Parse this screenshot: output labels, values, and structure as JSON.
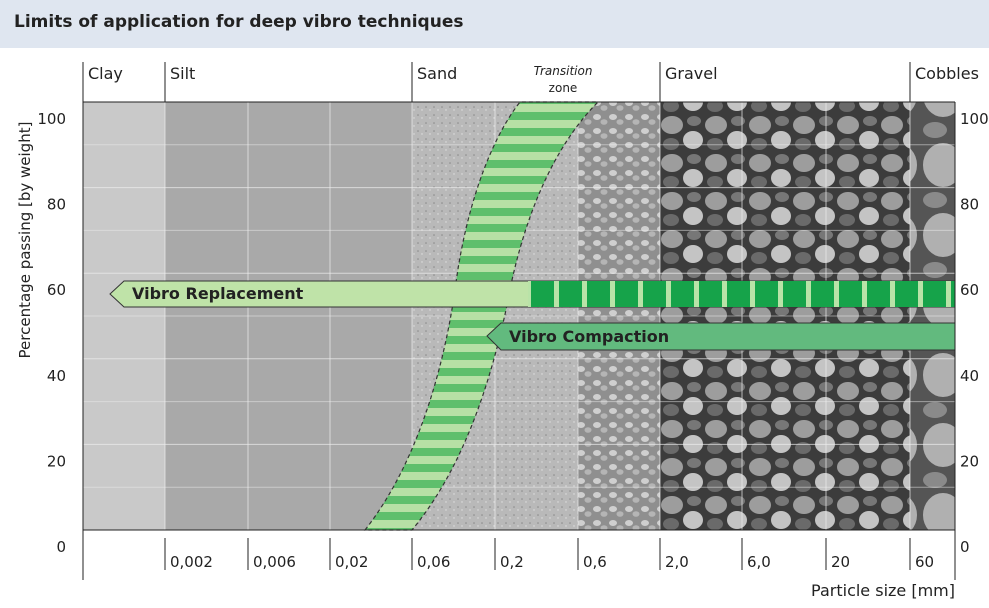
{
  "title": "Limits of application for deep vibro techniques",
  "y_axis_label": "Percentage passing [by weight]",
  "y_ticks": [
    0,
    20,
    40,
    60,
    80,
    100
  ],
  "x_ticks": [
    "0,002",
    "0,006",
    "0,02",
    "0,06",
    "0,2",
    "0,6",
    "2,0",
    "6,0",
    "20",
    "60"
  ],
  "x_axis_label": "Particle size [mm]",
  "zones": [
    "Clay",
    "Silt",
    "Sand",
    "Gravel",
    "Cobbles"
  ],
  "transition_zone": [
    "Transition",
    "zone"
  ],
  "techniques": [
    "Vibro Replacement",
    "Vibro Compaction"
  ]
}
